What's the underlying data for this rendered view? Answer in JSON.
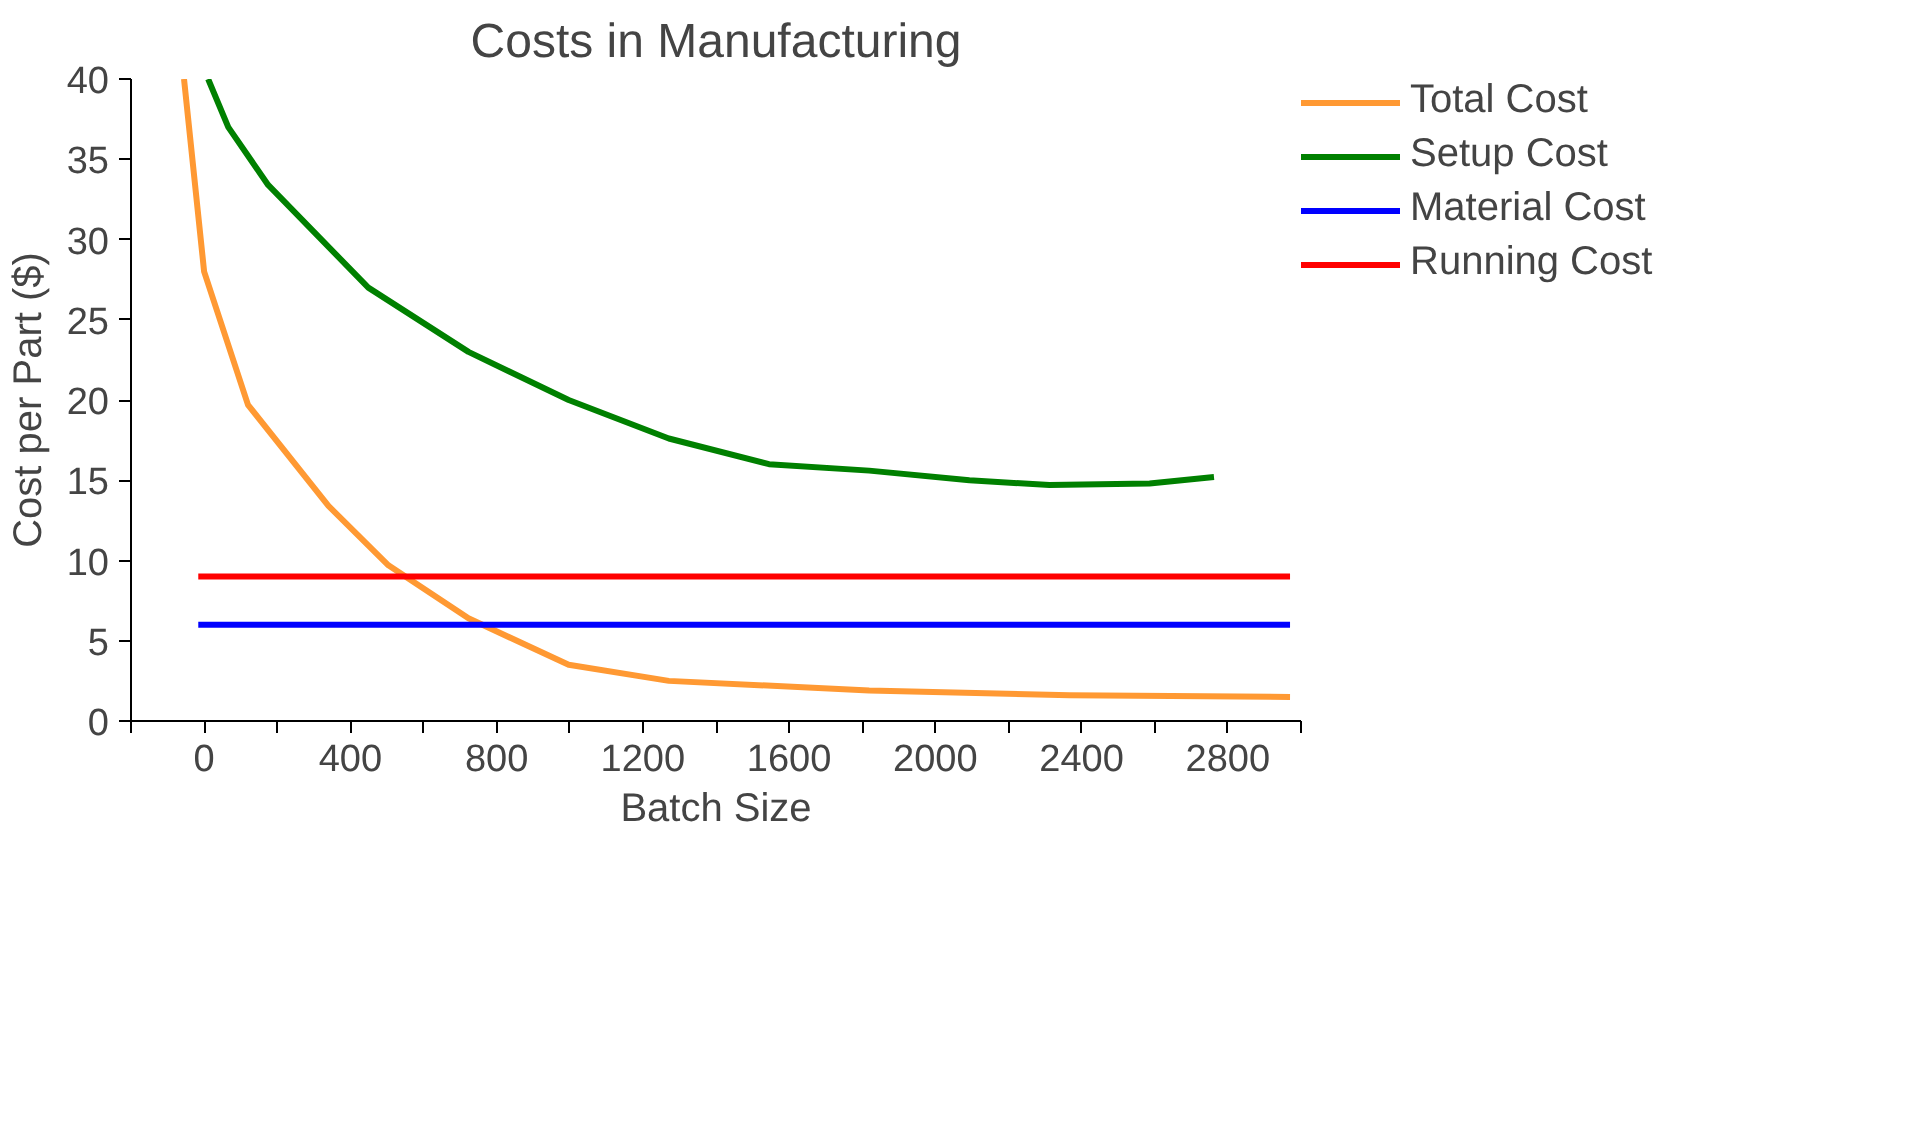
{
  "chart_data": {
    "type": "line",
    "title": "Costs in Manufacturing",
    "xlabel": "Batch Size",
    "ylabel": "Cost per Part ($)",
    "xlim": [
      -200,
      3000
    ],
    "ylim": [
      0,
      40
    ],
    "xticks": [
      {
        "value": -200,
        "label": null
      },
      0,
      {
        "value": 200,
        "label": null
      },
      400,
      {
        "value": 600,
        "label": null
      },
      800,
      {
        "value": 1000,
        "label": null
      },
      1200,
      {
        "value": 1400,
        "label": null
      },
      1600,
      {
        "value": 1800,
        "label": null
      },
      2000,
      {
        "value": 2200,
        "label": null
      },
      2400,
      {
        "value": 2600,
        "label": null
      },
      2800,
      {
        "value": 3000,
        "label": null
      }
    ],
    "yticks": [
      0,
      5,
      10,
      15,
      20,
      25,
      30,
      35,
      40
    ],
    "grid": false,
    "legend": "right",
    "line_style": "solid",
    "marker": "none",
    "series": [
      {
        "name": "Total Cost",
        "color": "#ff9933",
        "x": [
          -55,
          0,
          120,
          340,
          504,
          723,
          997,
          1271,
          1819,
          2367,
          2970
        ],
        "values": [
          40,
          28,
          19.7,
          13.4,
          9.7,
          6.4,
          3.5,
          2.5,
          1.9,
          1.6,
          1.5
        ]
      },
      {
        "name": "Setup Cost",
        "color": "#008000",
        "x": [
          11,
          66,
          175,
          449,
          723,
          997,
          1271,
          1545,
          1819,
          2093,
          2312,
          2586,
          2762
        ],
        "values": [
          40,
          37,
          33.4,
          27,
          23,
          20,
          17.6,
          16,
          15.6,
          15,
          14.7,
          14.8,
          15.2
        ]
      },
      {
        "name": "Material Cost",
        "color": "#0000ff",
        "x": [
          -16,
          2970
        ],
        "values": [
          6,
          6
        ]
      },
      {
        "name": "Running Cost",
        "color": "#ff0000",
        "x": [
          -16,
          2970
        ],
        "values": [
          9,
          9
        ]
      }
    ]
  }
}
